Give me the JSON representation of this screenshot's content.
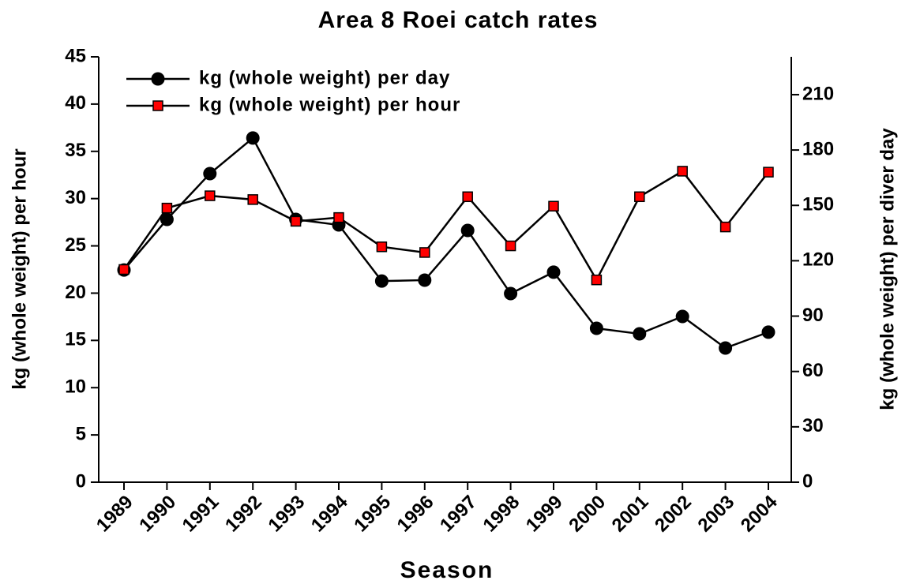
{
  "chart_data": {
    "type": "line",
    "title": "Area 8 Roei catch rates",
    "x_label": "Season",
    "y_label": "kg (whole weight) per hour",
    "y2_label": "kg (whole weight) per diver day",
    "categories": [
      "1989",
      "1990",
      "1991",
      "1992",
      "1993",
      "1994",
      "1995",
      "1996",
      "1997",
      "1998",
      "1999",
      "2000",
      "2001",
      "2002",
      "2003",
      "2004"
    ],
    "series": [
      {
        "name": "kg (whole weight) per day",
        "color": "#000000",
        "marker": "circle",
        "axis": "y2",
        "values": [
          115,
          142.4,
          167.2,
          186.5,
          142.4,
          139.4,
          109,
          109.5,
          136.4,
          102.2,
          113.8,
          83.4,
          80.4,
          89.8,
          72.7,
          81.3
        ]
      },
      {
        "name": "kg (whole weight) per hour",
        "color": "#ff0000",
        "marker": "square",
        "values": [
          22.5,
          29.0,
          30.3,
          29.9,
          27.6,
          28.0,
          24.9,
          24.3,
          30.2,
          25.0,
          29.2,
          21.4,
          30.2,
          32.9,
          27.0,
          32.8
        ]
      }
    ],
    "ylim": [
      0,
      45
    ],
    "yticks": [
      0,
      5,
      10,
      15,
      20,
      25,
      30,
      35,
      40,
      45
    ],
    "y2lim": [
      0,
      230.5
    ],
    "y2ticks": [
      0,
      30,
      60,
      90,
      120,
      150,
      180,
      210
    ],
    "legend": "upper left",
    "grid": false
  }
}
